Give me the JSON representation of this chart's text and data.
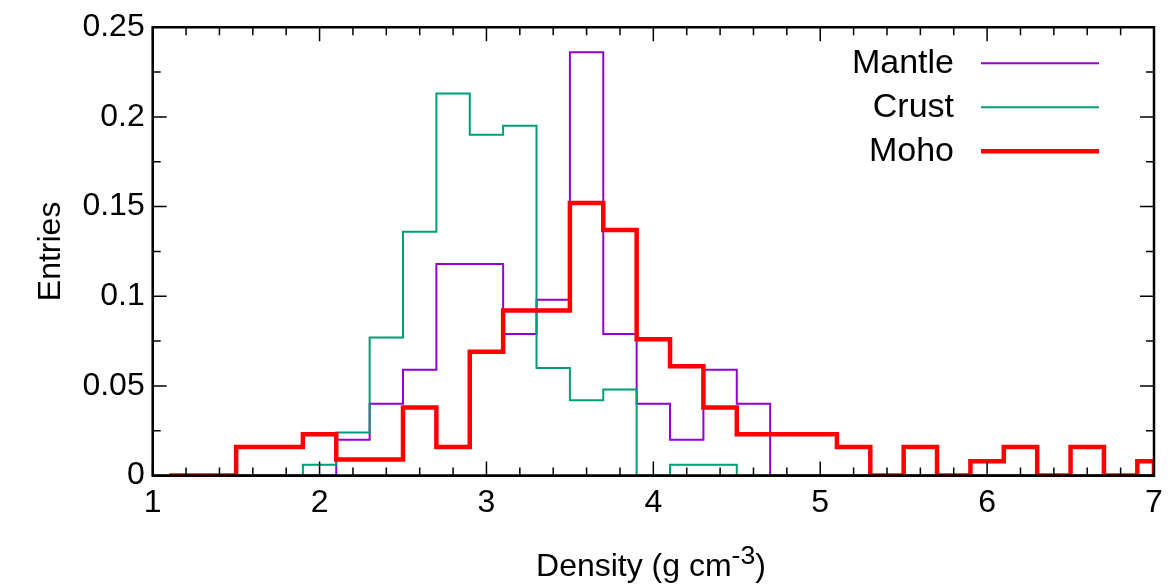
{
  "chart_data": {
    "type": "histogram",
    "xlabel": "Density (g cm$^{-3}$)",
    "ylabel": "Entries",
    "bins": [
      1.1,
      1.3,
      1.5,
      1.7,
      1.9,
      2.1,
      2.3,
      2.5,
      2.7,
      2.9,
      3.1,
      3.3,
      3.5,
      3.7,
      3.9,
      4.1,
      4.3,
      4.5,
      4.7,
      4.9,
      5.1,
      5.3,
      5.5,
      5.7,
      5.9,
      6.1,
      6.3,
      6.5,
      6.7,
      6.9,
      7.0
    ],
    "series": [
      {
        "name": "Mantle",
        "color": "#9400d3",
        "values": [
          0,
          0,
          0,
          0,
          0,
          0.02,
          0.04,
          0.059,
          0.118,
          0.118,
          0.079,
          0.098,
          0.236,
          0.079,
          0.04,
          0.02,
          0.059,
          0.04,
          0,
          0,
          0,
          0,
          0,
          0,
          0,
          0,
          0,
          0,
          0,
          0
        ]
      },
      {
        "name": "Crust",
        "color": "#009e73",
        "values": [
          0,
          0,
          0,
          0,
          0.006,
          0.024,
          0.077,
          0.136,
          0.213,
          0.19,
          0.195,
          0.06,
          0.042,
          0.048,
          0,
          0.006,
          0.006,
          0,
          0,
          0,
          0,
          0,
          0,
          0,
          0,
          0,
          0,
          0,
          0,
          0
        ]
      },
      {
        "name": "Moho",
        "color": "#ff0000",
        "values": [
          0,
          0,
          0.016,
          0.016,
          0.023,
          0.009,
          0.009,
          0.038,
          0.016,
          0.069,
          0.092,
          0.092,
          0.152,
          0.137,
          0.076,
          0.061,
          0.038,
          0.023,
          0.023,
          0.023,
          0.016,
          0,
          0.016,
          0,
          0.008,
          0.016,
          0,
          0.016,
          0,
          0.008
        ]
      }
    ],
    "xlim": [
      1,
      7
    ],
    "xticks": [
      1,
      {
        "value": 1.2,
        "label": null
      },
      {
        "value": 1.4,
        "label": null
      },
      {
        "value": 1.6,
        "label": null
      },
      {
        "value": 1.8,
        "label": null
      },
      2,
      {
        "value": 2.2,
        "label": null
      },
      {
        "value": 2.4,
        "label": null
      },
      {
        "value": 2.6,
        "label": null
      },
      {
        "value": 2.8,
        "label": null
      },
      3,
      {
        "value": 3.2,
        "label": null
      },
      {
        "value": 3.4,
        "label": null
      },
      {
        "value": 3.6,
        "label": null
      },
      {
        "value": 3.8,
        "label": null
      },
      4,
      {
        "value": 4.2,
        "label": null
      },
      {
        "value": 4.4,
        "label": null
      },
      {
        "value": 4.6,
        "label": null
      },
      {
        "value": 4.8,
        "label": null
      },
      5,
      {
        "value": 5.2,
        "label": null
      },
      {
        "value": 5.4,
        "label": null
      },
      {
        "value": 5.6,
        "label": null
      },
      {
        "value": 5.8,
        "label": null
      },
      6,
      {
        "value": 6.2,
        "label": null
      },
      {
        "value": 6.4,
        "label": null
      },
      {
        "value": 6.6,
        "label": null
      },
      {
        "value": 6.8,
        "label": null
      },
      7
    ],
    "ylim": [
      0,
      0.25
    ],
    "yticks": [
      0,
      {
        "value": 0.025,
        "label": null
      },
      0.05,
      {
        "value": 0.075,
        "label": null
      },
      0.1,
      {
        "value": 0.125,
        "label": null
      },
      0.15,
      {
        "value": 0.175,
        "label": null
      },
      0.2,
      {
        "value": 0.225,
        "label": null
      },
      0.25
    ],
    "legend": "top right"
  }
}
